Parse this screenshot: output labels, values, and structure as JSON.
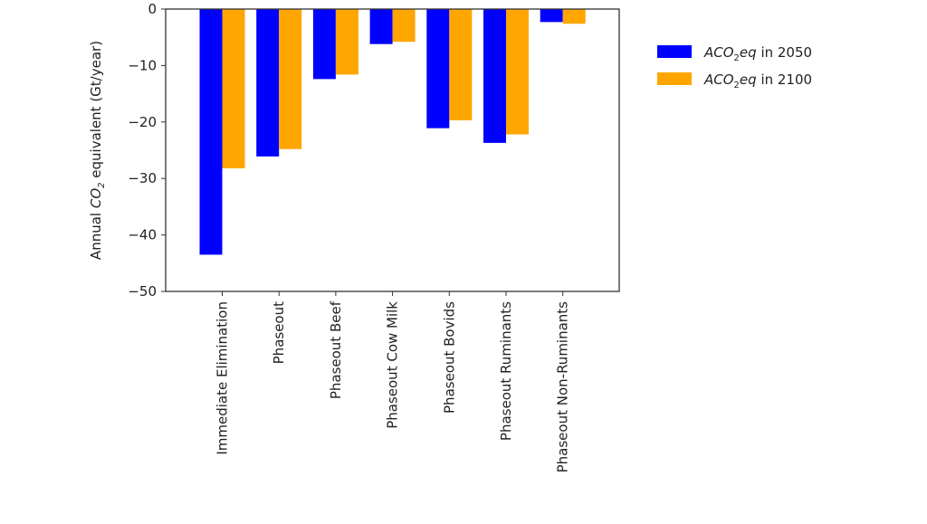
{
  "chart_data": {
    "type": "bar",
    "categories": [
      "Immediate Elimination",
      "Phaseout",
      "Phaseout Beef",
      "Phaseout Cow Milk",
      "Phaseout Bovids",
      "Phaseout Ruminants",
      "Phaseout Non-Ruminants"
    ],
    "series": [
      {
        "name": "ACO₂eq in 2050",
        "name_parts": [
          "ACO",
          "2",
          "eq",
          " in 2050"
        ],
        "color": "#0000ff",
        "values": [
          -43.5,
          -26.1,
          -12.4,
          -6.2,
          -21.1,
          -23.7,
          -2.3
        ]
      },
      {
        "name": "ACO₂eq in 2100",
        "name_parts": [
          "ACO",
          "2",
          "eq",
          " in 2100"
        ],
        "color": "#ffa500",
        "values": [
          -28.2,
          -24.8,
          -11.6,
          -5.8,
          -19.7,
          -22.2,
          -2.6
        ]
      }
    ],
    "ylabel_parts": [
      "Annual ",
      "CO",
      "2",
      " equivalent (Gt/year)"
    ],
    "ylim": [
      -50,
      0
    ],
    "yticks": [
      0,
      -10,
      -20,
      -30,
      -40,
      -50
    ],
    "grid": false,
    "legend": "outside-right"
  }
}
